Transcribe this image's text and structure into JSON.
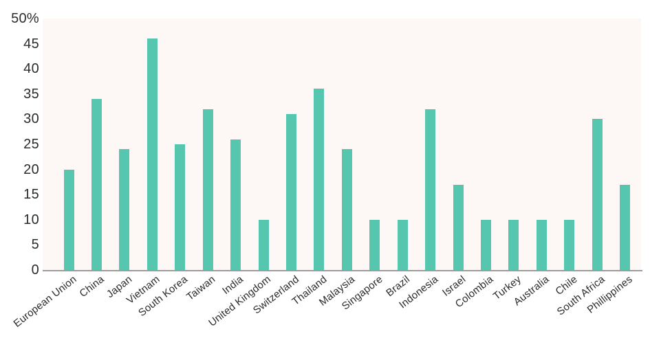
{
  "chart_data": {
    "type": "bar",
    "title": "",
    "xlabel": "",
    "ylabel": "",
    "categories": [
      "European Union",
      "China",
      "Japan",
      "Vietnam",
      "South Korea",
      "Taiwan",
      "India",
      "United Kingdom",
      "Switzerland",
      "Thailand",
      "Malaysia",
      "Singapore",
      "Brazil",
      "Indonesia",
      "Israel",
      "Colombia",
      "Turkey",
      "Australia",
      "Chile",
      "South Africa",
      "Phillippines"
    ],
    "values": [
      20,
      34,
      24,
      46,
      25,
      32,
      26,
      10,
      31,
      36,
      24,
      10,
      10,
      32,
      17,
      10,
      10,
      10,
      10,
      30,
      17
    ],
    "ylim": [
      0,
      50
    ],
    "y_ticks": [
      {
        "value": 50,
        "label": "50%"
      },
      {
        "value": 45,
        "label": "45"
      },
      {
        "value": 40,
        "label": "40"
      },
      {
        "value": 35,
        "label": "35"
      },
      {
        "value": 30,
        "label": "30"
      },
      {
        "value": 25,
        "label": "25"
      },
      {
        "value": 20,
        "label": "20"
      },
      {
        "value": 15,
        "label": "15"
      },
      {
        "value": 10,
        "label": "10"
      },
      {
        "value": 5,
        "label": "5"
      },
      {
        "value": 0,
        "label": "0"
      }
    ],
    "grid": false,
    "legend": false,
    "colors": {
      "bar": "#57c6ae",
      "plot_background": "#fdf8f6",
      "axis_line": "#9b9b9b",
      "text": "#2b2b2b"
    }
  }
}
